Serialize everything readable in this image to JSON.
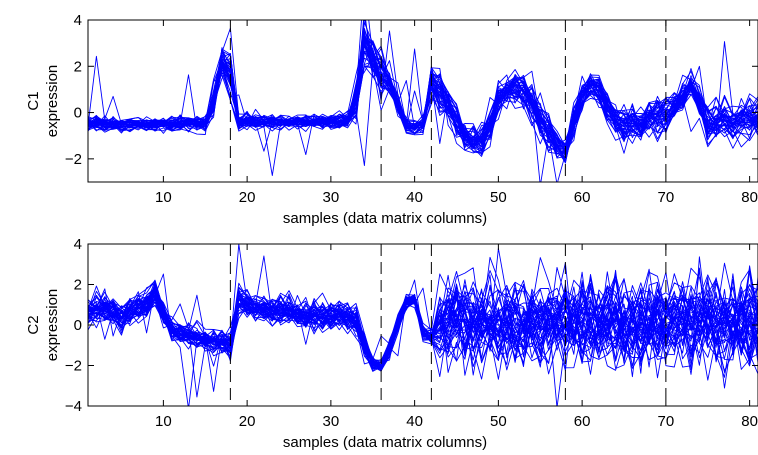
{
  "chart_data": [
    {
      "type": "line",
      "xlabel": "samples (data matrix columns)",
      "ylabel": [
        "C1",
        "expression"
      ],
      "xlim": [
        1,
        81
      ],
      "ylim": [
        -3,
        4
      ],
      "xticks": [
        10,
        20,
        30,
        40,
        50,
        60,
        70,
        80
      ],
      "xtick_labels": [
        "10",
        "20",
        "30",
        "40",
        "50",
        "60",
        "70",
        "80"
      ],
      "yticks": [
        -2,
        0,
        2,
        4
      ],
      "ytick_labels": [
        "−2",
        "0",
        "2",
        "4"
      ],
      "boundaries": [
        18,
        36,
        42,
        58,
        70
      ],
      "line_color": "#0000ff",
      "grid": false,
      "series_count": 40,
      "profile": {
        "x": [
          1,
          8,
          15,
          16,
          17,
          18,
          19,
          25,
          32,
          33,
          34,
          35,
          36,
          37,
          38,
          39,
          40,
          41,
          42,
          43,
          44,
          45,
          46,
          47,
          48,
          49,
          50,
          51,
          52,
          53,
          54,
          55,
          56,
          57,
          58,
          59,
          60,
          61,
          62,
          63,
          64,
          65,
          66,
          67,
          68,
          69,
          70,
          71,
          72,
          73,
          74,
          75,
          76,
          77,
          78,
          79,
          80,
          81
        ],
        "mean": [
          -0.5,
          -0.5,
          -0.45,
          0.5,
          2.3,
          1.8,
          -0.4,
          -0.4,
          -0.35,
          0.5,
          2.8,
          2.4,
          1.6,
          1.3,
          0.3,
          -0.6,
          -0.6,
          -0.5,
          1.3,
          0.8,
          0.3,
          -0.4,
          -1.0,
          -1.2,
          -1.2,
          -0.6,
          0.6,
          1.0,
          1.1,
          0.9,
          0.4,
          -0.3,
          -0.9,
          -1.3,
          -1.7,
          -0.3,
          0.7,
          1.2,
          1.0,
          0.3,
          -0.3,
          -0.5,
          -0.3,
          -0.5,
          -0.2,
          -0.2,
          -0.1,
          0.3,
          0.7,
          1.2,
          0.4,
          -0.5,
          -0.4,
          -0.3,
          -0.5,
          -0.2,
          -0.3,
          -0.2
        ],
        "spread": [
          0.12,
          0.12,
          0.15,
          0.3,
          0.35,
          0.5,
          0.15,
          0.12,
          0.15,
          0.4,
          0.5,
          0.4,
          0.5,
          0.2,
          0.2,
          0.15,
          0.15,
          0.15,
          0.4,
          0.35,
          0.35,
          0.3,
          0.3,
          0.3,
          0.3,
          0.3,
          0.35,
          0.35,
          0.35,
          0.35,
          0.35,
          0.35,
          0.3,
          0.3,
          0.25,
          0.3,
          0.3,
          0.25,
          0.3,
          0.3,
          0.3,
          0.35,
          0.35,
          0.35,
          0.35,
          0.35,
          0.35,
          0.3,
          0.3,
          0.25,
          0.3,
          0.35,
          0.35,
          0.35,
          0.35,
          0.35,
          0.35,
          0.35
        ]
      }
    },
    {
      "type": "line",
      "xlabel": "samples (data matrix columns)",
      "ylabel": [
        "C2",
        "expression"
      ],
      "xlim": [
        1,
        81
      ],
      "ylim": [
        -4,
        4
      ],
      "xticks": [
        10,
        20,
        30,
        40,
        50,
        60,
        70,
        80
      ],
      "xtick_labels": [
        "10",
        "20",
        "30",
        "40",
        "50",
        "60",
        "70",
        "80"
      ],
      "yticks": [
        -4,
        -2,
        0,
        2,
        4
      ],
      "ytick_labels": [
        "−4",
        "−2",
        "0",
        "2",
        "4"
      ],
      "boundaries": [
        18,
        36,
        42,
        58,
        70
      ],
      "line_color": "#0000ff",
      "grid": false,
      "series_count": 45,
      "profile": {
        "x": [
          1,
          3,
          5,
          6,
          8,
          9,
          10,
          11,
          13,
          15,
          17,
          18,
          19,
          21,
          23,
          25,
          27,
          29,
          31,
          33,
          34,
          35,
          36,
          37,
          38,
          39,
          40,
          41,
          42,
          43,
          46,
          50,
          54,
          58,
          62,
          66,
          70,
          74,
          78,
          81
        ],
        "mean": [
          0.6,
          0.8,
          0.4,
          0.6,
          1.0,
          1.6,
          0.5,
          -0.3,
          -0.6,
          -0.8,
          -0.9,
          -1.0,
          1.2,
          0.8,
          0.6,
          0.6,
          0.4,
          0.4,
          0.5,
          0.2,
          -1.0,
          -1.9,
          -2.0,
          -1.2,
          0.0,
          1.1,
          1.2,
          -0.4,
          -0.6,
          0.0,
          0.1,
          0.0,
          0.0,
          0.1,
          0.0,
          0.0,
          0.0,
          0.0,
          0.0,
          0.0
        ],
        "spread": [
          0.3,
          0.3,
          0.3,
          0.3,
          0.3,
          0.3,
          0.3,
          0.25,
          0.25,
          0.25,
          0.25,
          0.3,
          0.3,
          0.3,
          0.3,
          0.3,
          0.3,
          0.3,
          0.3,
          0.3,
          0.3,
          0.15,
          0.15,
          0.2,
          0.2,
          0.15,
          0.15,
          0.15,
          0.15,
          0.9,
          0.9,
          0.9,
          0.9,
          1.0,
          1.0,
          1.1,
          1.0,
          1.0,
          1.1,
          1.0
        ]
      }
    }
  ]
}
